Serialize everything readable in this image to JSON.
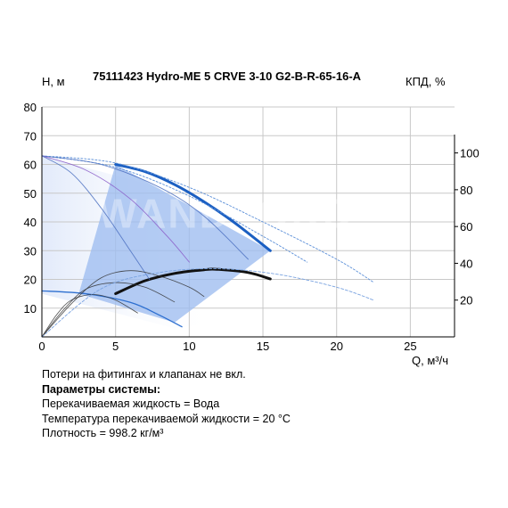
{
  "title": "75111423 Hydro-ME 5 CRVE 3-10 G2-B-R-65-16-A",
  "left_axis_label": "H, м",
  "right_axis_label": "КПД, %",
  "x_axis_label": "Q, м³/ч",
  "watermark": "WANDFORD",
  "notes": {
    "line1": "Потери на фитингах и клапанах не вкл.",
    "heading": "Параметры системы:",
    "line2": "Перекачиваемая жидкость = Вода",
    "line3": "Температура перекачиваемой жидкости = 20 °C",
    "line4": "Плотность = 998.2 кг/м³"
  },
  "colors": {
    "head_curve": "#1b5fc2",
    "efficiency_curve": "#111111",
    "region_fill": "#9dbcf0",
    "grid": "#c8c8c8"
  },
  "chart_data": {
    "type": "line",
    "x": {
      "label": "Q, м³/ч",
      "range": [
        0,
        28
      ],
      "ticks": [
        0,
        5,
        10,
        15,
        20,
        25
      ]
    },
    "y_left": {
      "label": "H, м",
      "range": [
        0,
        80
      ],
      "ticks": [
        10,
        20,
        30,
        40,
        50,
        60,
        70,
        80
      ]
    },
    "y_right": {
      "label": "КПД, %",
      "range": [
        0,
        125
      ],
      "ticks": [
        20,
        40,
        60,
        80,
        100
      ]
    },
    "grid": true,
    "operating_region": [
      [
        5,
        60
      ],
      [
        15.5,
        30
      ],
      [
        9,
        5
      ],
      [
        2.5,
        15
      ]
    ],
    "series": [
      {
        "role": "head-max",
        "axis": "left",
        "style": "bold",
        "points": [
          [
            5,
            60
          ],
          [
            7,
            57.5
          ],
          [
            9,
            53
          ],
          [
            11,
            47
          ],
          [
            13,
            40
          ],
          [
            15.5,
            30
          ]
        ]
      },
      {
        "role": "efficiency",
        "axis": "right",
        "style": "bold",
        "points": [
          [
            5,
            23.5
          ],
          [
            7,
            30.5
          ],
          [
            9,
            34.5
          ],
          [
            11,
            36.5
          ],
          [
            12,
            36.7
          ],
          [
            14,
            35
          ],
          [
            15.5,
            31.5
          ]
        ]
      },
      {
        "role": "head-envelope",
        "axis": "left",
        "style": "thin",
        "points": [
          [
            0,
            63
          ],
          [
            5,
            60.5
          ],
          [
            10,
            52
          ],
          [
            15,
            40
          ],
          [
            20,
            27
          ],
          [
            22.5,
            19
          ]
        ]
      },
      {
        "role": "head-envelope",
        "axis": "left",
        "style": "thin",
        "points": [
          [
            0,
            63
          ],
          [
            5,
            59
          ],
          [
            10,
            49
          ],
          [
            15,
            35
          ],
          [
            18,
            26
          ]
        ]
      },
      {
        "role": "head-reduced",
        "axis": "left",
        "style": "thin",
        "points": [
          [
            0,
            63
          ],
          [
            4,
            60
          ],
          [
            8,
            52
          ],
          [
            11,
            42
          ],
          [
            14,
            27
          ]
        ]
      },
      {
        "role": "head-reduced",
        "axis": "left",
        "style": "thin",
        "points": [
          [
            0,
            63
          ],
          [
            3,
            58
          ],
          [
            6,
            48
          ],
          [
            8.5,
            35
          ],
          [
            10,
            26
          ]
        ]
      },
      {
        "role": "head-reduced",
        "axis": "left",
        "style": "thin",
        "points": [
          [
            0,
            63
          ],
          [
            2,
            57
          ],
          [
            4,
            45
          ],
          [
            6,
            30
          ],
          [
            7.3,
            20
          ]
        ]
      },
      {
        "role": "head-min",
        "axis": "left",
        "style": "thin",
        "points": [
          [
            0,
            16
          ],
          [
            3,
            15
          ],
          [
            6,
            12
          ],
          [
            8,
            7.5
          ],
          [
            9.5,
            3.5
          ]
        ]
      },
      {
        "role": "efficiency-reduced",
        "axis": "right",
        "style": "thin",
        "points": [
          [
            0,
            0
          ],
          [
            2,
            18
          ],
          [
            4,
            32
          ],
          [
            6,
            36
          ],
          [
            8,
            33
          ],
          [
            10,
            27
          ],
          [
            11,
            22
          ]
        ]
      },
      {
        "role": "efficiency-reduced",
        "axis": "right",
        "style": "thin",
        "points": [
          [
            0,
            0
          ],
          [
            1.5,
            15
          ],
          [
            3,
            26
          ],
          [
            5,
            29.5
          ],
          [
            7,
            27
          ],
          [
            9,
            19
          ]
        ]
      },
      {
        "role": "efficiency-reduced",
        "axis": "right",
        "style": "thin",
        "points": [
          [
            0,
            0
          ],
          [
            1,
            12
          ],
          [
            2,
            20
          ],
          [
            3.5,
            23
          ],
          [
            5,
            20
          ],
          [
            6.5,
            13
          ]
        ]
      },
      {
        "role": "efficiency-envelope",
        "axis": "right",
        "style": "thin",
        "points": [
          [
            0,
            0
          ],
          [
            4,
            26
          ],
          [
            8,
            35
          ],
          [
            12,
            37
          ],
          [
            16,
            34
          ],
          [
            20,
            27
          ],
          [
            22.5,
            20
          ]
        ]
      }
    ]
  }
}
